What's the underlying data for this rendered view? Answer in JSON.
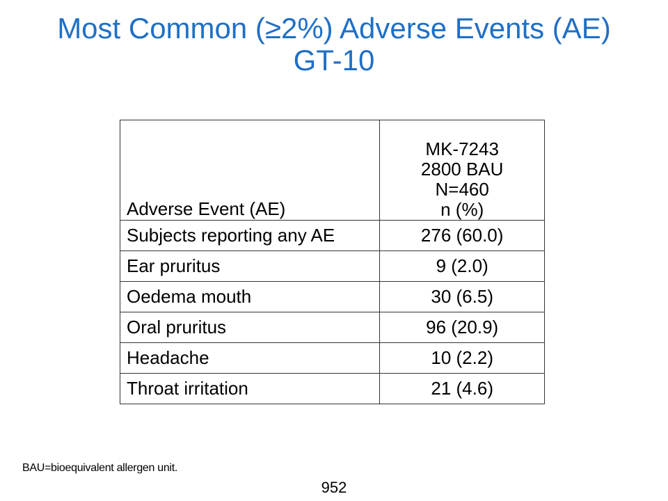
{
  "title": {
    "line1": "Most Common (≥2%) Adverse Events (AE)",
    "line2": "GT-10"
  },
  "table": {
    "header": {
      "event": "Adverse Event (AE)",
      "value_lines": [
        "MK-7243",
        "2800 BAU",
        "N=460",
        "n (%)"
      ]
    },
    "rows": [
      {
        "event": "Subjects reporting any AE",
        "value": "276 (60.0)"
      },
      {
        "event": "Ear pruritus",
        "value": "9 (2.0)"
      },
      {
        "event": "Oedema mouth",
        "value": "30 (6.5)"
      },
      {
        "event": "Oral pruritus",
        "value": "96 (20.9)"
      },
      {
        "event": "Headache",
        "value": "10 (2.2)"
      },
      {
        "event": "Throat irritation",
        "value": "21 (4.6)"
      }
    ]
  },
  "footnote": "BAU=bioequivalent allergen unit.",
  "page_number": "952"
}
